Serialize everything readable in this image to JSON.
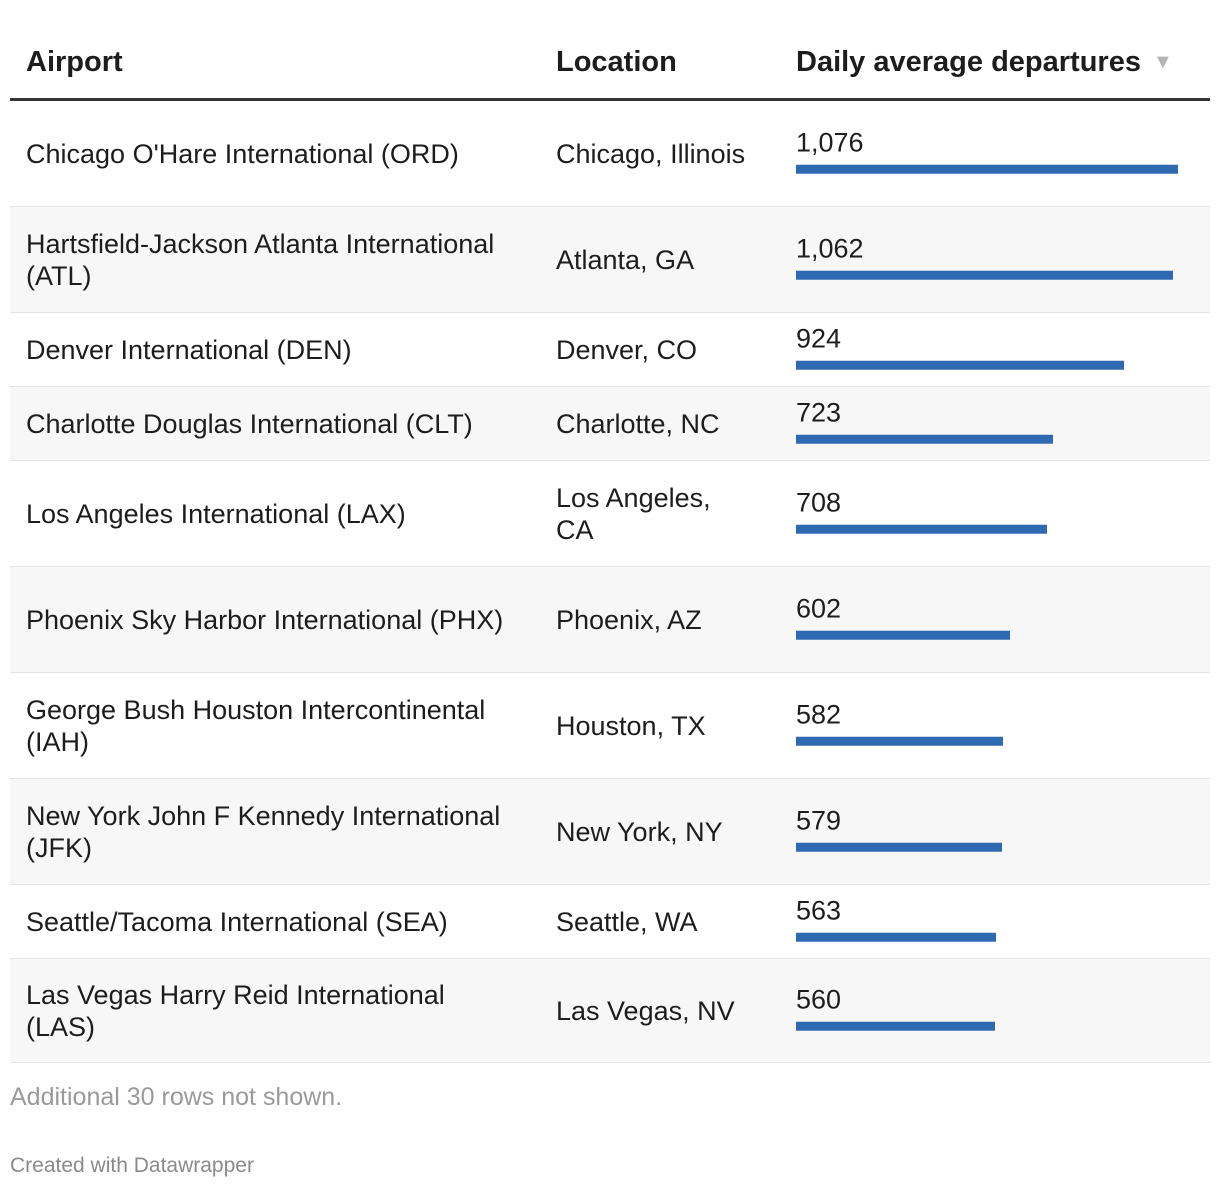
{
  "header": {
    "airport": "Airport",
    "location": "Location",
    "departures": "Daily average departures",
    "sort_icon": "▼"
  },
  "chart_data": {
    "type": "table",
    "columns": [
      "Airport",
      "Location",
      "Daily average departures"
    ],
    "bar_max": 1076,
    "bar_color": "#2f69b2",
    "rows": [
      {
        "airport": "Chicago O'Hare International (ORD)",
        "location": "Chicago, Illinois",
        "departures": 1076,
        "label": "1,076"
      },
      {
        "airport": "Hartsfield-Jackson Atlanta International (ATL)",
        "location": "Atlanta, GA",
        "departures": 1062,
        "label": "1,062"
      },
      {
        "airport": "Denver International (DEN)",
        "location": "Denver, CO",
        "departures": 924,
        "label": "924"
      },
      {
        "airport": "Charlotte Douglas International (CLT)",
        "location": "Charlotte, NC",
        "departures": 723,
        "label": "723"
      },
      {
        "airport": "Los Angeles International (LAX)",
        "location": "Los Angeles, CA",
        "departures": 708,
        "label": "708"
      },
      {
        "airport": "Phoenix Sky Harbor International (PHX)",
        "location": "Phoenix, AZ",
        "departures": 602,
        "label": "602"
      },
      {
        "airport": "George Bush Houston Intercontinental (IAH)",
        "location": "Houston, TX",
        "departures": 582,
        "label": "582"
      },
      {
        "airport": "New York John F Kennedy International (JFK)",
        "location": "New York, NY",
        "departures": 579,
        "label": "579"
      },
      {
        "airport": "Seattle/Tacoma International (SEA)",
        "location": "Seattle, WA",
        "departures": 563,
        "label": "563"
      },
      {
        "airport": "Las Vegas Harry Reid International (LAS)",
        "location": "Las Vegas, NV",
        "departures": 560,
        "label": "560"
      }
    ]
  },
  "footer": {
    "notes": "Additional 30 rows not shown.",
    "credit": "Created with Datawrapper"
  }
}
